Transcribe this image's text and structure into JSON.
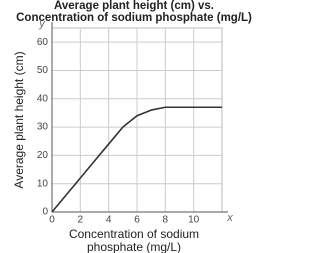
{
  "chart_data": {
    "type": "line",
    "title_lines": [
      "Average plant height (cm) vs.",
      "Concentration of sodium phosphate (mg/L)"
    ],
    "y_label": "Average plant height (cm)",
    "x_label_lines": [
      "Concentration of sodium",
      "phosphate (mg/L)"
    ],
    "x_letter": "x",
    "y_letter": "y",
    "x": [
      0,
      1,
      2,
      3,
      4,
      5,
      6,
      7,
      8,
      9,
      10,
      11,
      12
    ],
    "values": [
      0,
      6,
      12,
      18,
      24,
      30,
      34,
      36,
      37,
      37,
      37,
      37,
      37
    ],
    "color": "#333333",
    "xlim": [
      0,
      12
    ],
    "ylim": [
      0,
      65
    ],
    "xticks": [
      0,
      2,
      4,
      6,
      8,
      10
    ],
    "yticks": [
      0,
      10,
      20,
      30,
      40,
      50,
      60
    ],
    "grid": true
  }
}
